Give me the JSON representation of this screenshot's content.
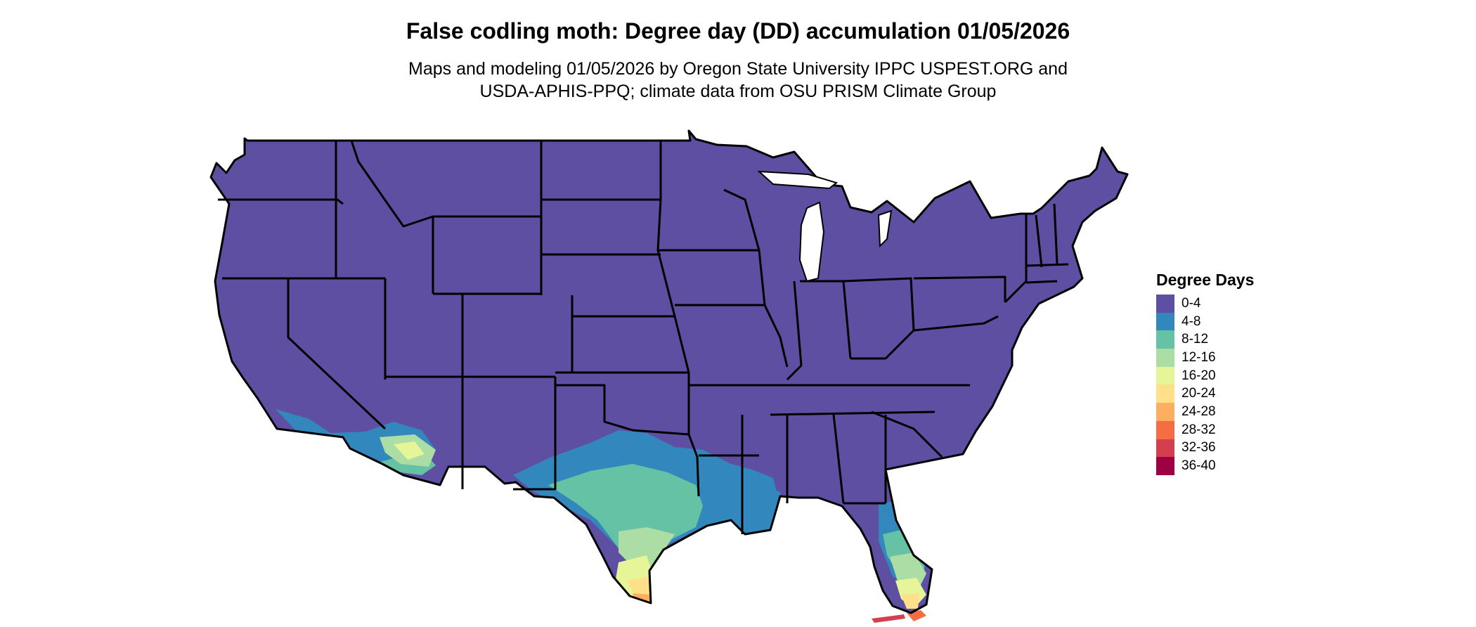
{
  "title": "False codling moth: Degree day (DD) accumulation 01/05/2026",
  "subtitle": {
    "line1": "Maps and modeling 01/05/2026 by Oregon State University IPPC USPEST.ORG and",
    "line2": "USDA-APHIS-PPQ; climate data from OSU PRISM Climate Group"
  },
  "legend": {
    "title": "Degree Days",
    "items": [
      {
        "label": "0-4",
        "color": "#5E4FA2"
      },
      {
        "label": "4-8",
        "color": "#3288BD"
      },
      {
        "label": "8-12",
        "color": "#66C2A5"
      },
      {
        "label": "12-16",
        "color": "#ABDDA4"
      },
      {
        "label": "16-20",
        "color": "#E6F598"
      },
      {
        "label": "20-24",
        "color": "#FEE08B"
      },
      {
        "label": "24-28",
        "color": "#FDAE61"
      },
      {
        "label": "28-32",
        "color": "#F46D43"
      },
      {
        "label": "32-36",
        "color": "#D53E4F"
      },
      {
        "label": "36-40",
        "color": "#9E0142"
      }
    ]
  },
  "map": {
    "base_bin": "0-4",
    "warm_regions": [
      {
        "region": "southern-california-coast",
        "bins": [
          "4-8",
          "8-12",
          "12-16",
          "16-20"
        ]
      },
      {
        "region": "southwest-arizona",
        "bins": [
          "8-12",
          "12-16",
          "16-20"
        ]
      },
      {
        "region": "texas",
        "bins": [
          "4-8",
          "8-12",
          "12-16",
          "16-20",
          "20-24",
          "24-28"
        ]
      },
      {
        "region": "louisiana",
        "bins": [
          "4-8"
        ]
      },
      {
        "region": "florida",
        "bins": [
          "4-8",
          "8-12",
          "12-16",
          "16-20",
          "20-24",
          "28-32",
          "32-36"
        ]
      }
    ]
  }
}
